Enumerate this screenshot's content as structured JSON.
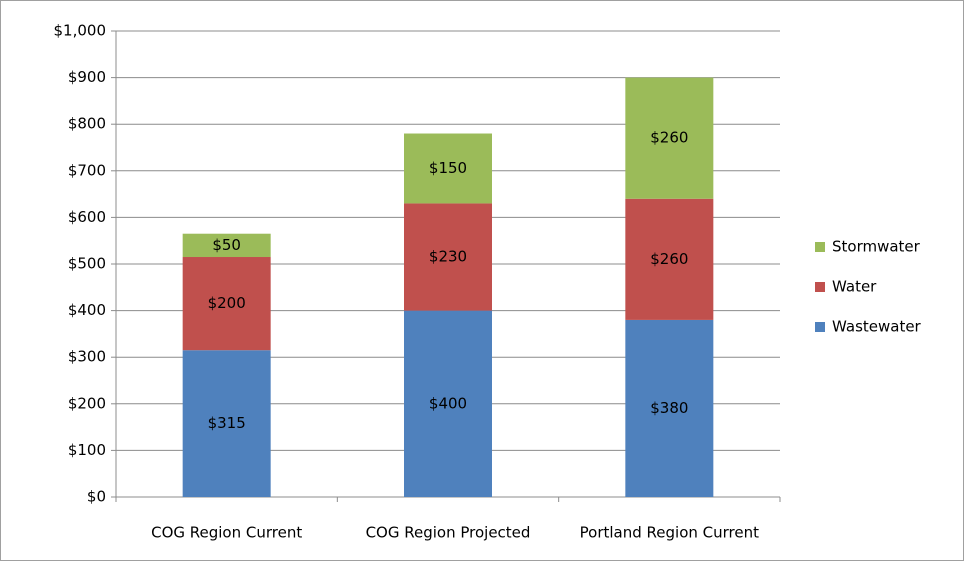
{
  "chart_data": {
    "type": "stacked_bar",
    "categories": [
      "COG Region Current",
      "COG Region Projected",
      "Portland Region Current"
    ],
    "series": [
      {
        "name": "Wastewater",
        "color": "#4f81bd",
        "values": [
          315,
          400,
          380
        ],
        "value_labels": [
          "$315",
          "$400",
          "$380"
        ]
      },
      {
        "name": "Water",
        "color": "#c0504d",
        "values": [
          200,
          230,
          260
        ],
        "value_labels": [
          "$200",
          "$230",
          "$260"
        ]
      },
      {
        "name": "Stormwater",
        "color": "#9bbb59",
        "values": [
          50,
          150,
          260
        ],
        "value_labels": [
          "$50",
          "$150",
          "$260"
        ]
      }
    ],
    "ylim": [
      0,
      1000
    ],
    "yticks": [
      {
        "value": 0,
        "label": "$0"
      },
      {
        "value": 100,
        "label": "$100"
      },
      {
        "value": 200,
        "label": "$200"
      },
      {
        "value": 300,
        "label": "$300"
      },
      {
        "value": 400,
        "label": "$400"
      },
      {
        "value": 500,
        "label": "$500"
      },
      {
        "value": 600,
        "label": "$600"
      },
      {
        "value": 700,
        "label": "$700"
      },
      {
        "value": 800,
        "label": "$800"
      },
      {
        "value": 900,
        "label": "$900"
      },
      {
        "value": 1000,
        "label": "$1,000"
      }
    ],
    "grid": true,
    "legend": "right"
  }
}
